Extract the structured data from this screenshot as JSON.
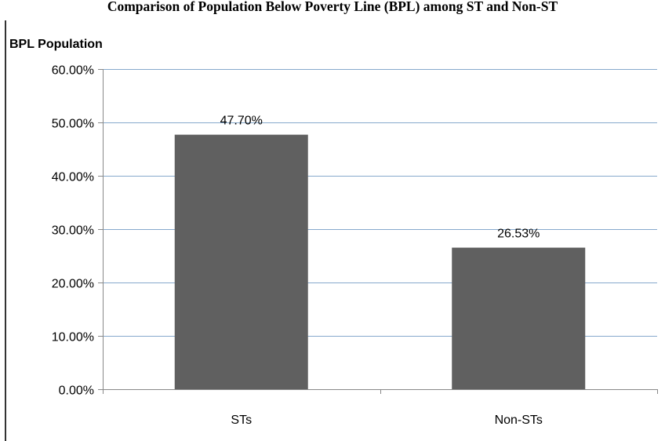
{
  "chart_data": {
    "type": "bar",
    "title": "Comparison of Population Below Poverty Line (BPL) among ST and Non-ST",
    "ylabel": "BPL Population",
    "xlabel": "",
    "categories": [
      "STs",
      "Non-STs"
    ],
    "values": [
      47.7,
      26.53
    ],
    "data_labels": [
      "47.70%",
      "26.53%"
    ],
    "yticks": [
      "0.00%",
      "10.00%",
      "20.00%",
      "30.00%",
      "40.00%",
      "50.00%",
      "60.00%"
    ],
    "ylim": [
      0,
      60
    ],
    "grid": true,
    "legend": "none",
    "bar_color": "#606060",
    "grid_color": "#86a9cc"
  }
}
